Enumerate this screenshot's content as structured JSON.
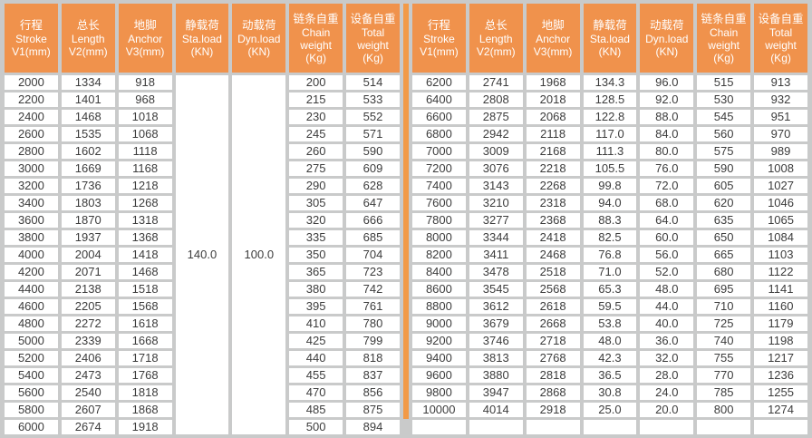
{
  "colors": {
    "header_bg": "#F0924C",
    "divider": "#F29A47",
    "grid": "#C9CACA",
    "cell_bg": "#FFFFFF",
    "header_text": "#FFFFFF",
    "body_text": "#3C3C3C"
  },
  "columns": [
    {
      "id": "stroke",
      "zh": "行程",
      "en": "Stroke",
      "unit": "V1(mm)"
    },
    {
      "id": "length",
      "zh": "总长",
      "en": "Length",
      "unit": "V2(mm)"
    },
    {
      "id": "anchor",
      "zh": "地脚",
      "en": "Anchor",
      "unit": "V3(mm)"
    },
    {
      "id": "sta-load",
      "zh": "静载荷",
      "en": "Sta.load",
      "unit": "(KN)"
    },
    {
      "id": "dyn-load",
      "zh": "动载荷",
      "en": "Dyn.load",
      "unit": "(KN)"
    },
    {
      "id": "chain-weight",
      "zh": "链条自重",
      "en": "Chain weight",
      "unit": "(Kg)"
    },
    {
      "id": "total-weight",
      "zh": "设备自重",
      "en": "Total weight",
      "unit": "(Kg)"
    }
  ],
  "left_table": {
    "merged": {
      "sta_load": "140.0",
      "dyn_load": "100.0"
    },
    "rows": [
      [
        "2000",
        "1334",
        "918",
        "200",
        "514"
      ],
      [
        "2200",
        "1401",
        "968",
        "215",
        "533"
      ],
      [
        "2400",
        "1468",
        "1018",
        "230",
        "552"
      ],
      [
        "2600",
        "1535",
        "1068",
        "245",
        "571"
      ],
      [
        "2800",
        "1602",
        "1118",
        "260",
        "590"
      ],
      [
        "3000",
        "1669",
        "1168",
        "275",
        "609"
      ],
      [
        "3200",
        "1736",
        "1218",
        "290",
        "628"
      ],
      [
        "3400",
        "1803",
        "1268",
        "305",
        "647"
      ],
      [
        "3600",
        "1870",
        "1318",
        "320",
        "666"
      ],
      [
        "3800",
        "1937",
        "1368",
        "335",
        "685"
      ],
      [
        "4000",
        "2004",
        "1418",
        "350",
        "704"
      ],
      [
        "4200",
        "2071",
        "1468",
        "365",
        "723"
      ],
      [
        "4400",
        "2138",
        "1518",
        "380",
        "742"
      ],
      [
        "4600",
        "2205",
        "1568",
        "395",
        "761"
      ],
      [
        "4800",
        "2272",
        "1618",
        "410",
        "780"
      ],
      [
        "5000",
        "2339",
        "1668",
        "425",
        "799"
      ],
      [
        "5200",
        "2406",
        "1718",
        "440",
        "818"
      ],
      [
        "5400",
        "2473",
        "1768",
        "455",
        "837"
      ],
      [
        "5600",
        "2540",
        "1818",
        "470",
        "856"
      ],
      [
        "5800",
        "2607",
        "1868",
        "485",
        "875"
      ],
      [
        "6000",
        "2674",
        "1918",
        "500",
        "894"
      ]
    ]
  },
  "right_table": {
    "rows": [
      [
        "6200",
        "2741",
        "1968",
        "134.3",
        "96.0",
        "515",
        "913"
      ],
      [
        "6400",
        "2808",
        "2018",
        "128.5",
        "92.0",
        "530",
        "932"
      ],
      [
        "6600",
        "2875",
        "2068",
        "122.8",
        "88.0",
        "545",
        "951"
      ],
      [
        "6800",
        "2942",
        "2118",
        "117.0",
        "84.0",
        "560",
        "970"
      ],
      [
        "7000",
        "3009",
        "2168",
        "111.3",
        "80.0",
        "575",
        "989"
      ],
      [
        "7200",
        "3076",
        "2218",
        "105.5",
        "76.0",
        "590",
        "1008"
      ],
      [
        "7400",
        "3143",
        "2268",
        "99.8",
        "72.0",
        "605",
        "1027"
      ],
      [
        "7600",
        "3210",
        "2318",
        "94.0",
        "68.0",
        "620",
        "1046"
      ],
      [
        "7800",
        "3277",
        "2368",
        "88.3",
        "64.0",
        "635",
        "1065"
      ],
      [
        "8000",
        "3344",
        "2418",
        "82.5",
        "60.0",
        "650",
        "1084"
      ],
      [
        "8200",
        "3411",
        "2468",
        "76.8",
        "56.0",
        "665",
        "1103"
      ],
      [
        "8400",
        "3478",
        "2518",
        "71.0",
        "52.0",
        "680",
        "1122"
      ],
      [
        "8600",
        "3545",
        "2568",
        "65.3",
        "48.0",
        "695",
        "1141"
      ],
      [
        "8800",
        "3612",
        "2618",
        "59.5",
        "44.0",
        "710",
        "1160"
      ],
      [
        "9000",
        "3679",
        "2668",
        "53.8",
        "40.0",
        "725",
        "1179"
      ],
      [
        "9200",
        "3746",
        "2718",
        "48.0",
        "36.0",
        "740",
        "1198"
      ],
      [
        "9400",
        "3813",
        "2768",
        "42.3",
        "32.0",
        "755",
        "1217"
      ],
      [
        "9600",
        "3880",
        "2818",
        "36.5",
        "28.0",
        "770",
        "1236"
      ],
      [
        "9800",
        "3947",
        "2868",
        "30.8",
        "24.0",
        "785",
        "1255"
      ],
      [
        "10000",
        "4014",
        "2918",
        "25.0",
        "20.0",
        "800",
        "1274"
      ]
    ],
    "empty_trailing_rows": 1
  }
}
